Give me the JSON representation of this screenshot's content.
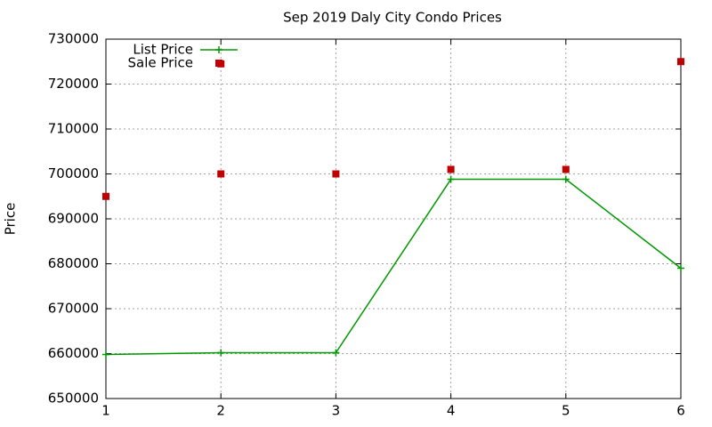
{
  "chart_data": {
    "type": "line",
    "title": "Sep 2019 Daly City Condo Prices",
    "y_label": "Price",
    "xlim": [
      1,
      6
    ],
    "xticks": [
      1,
      2,
      3,
      4,
      5,
      6
    ],
    "ylim": [
      650000,
      730000
    ],
    "yticks": [
      650000,
      660000,
      670000,
      680000,
      690000,
      700000,
      710000,
      720000,
      730000
    ],
    "grid": true,
    "legend": "top-left",
    "series": [
      {
        "name": "List Price",
        "color": "#009900",
        "style": "linespoints",
        "x": [
          1,
          2,
          3,
          4,
          5,
          6
        ],
        "values": [
          659800,
          660200,
          660200,
          698800,
          698800,
          679000
        ]
      },
      {
        "name": "Sale Price",
        "color": "#c00000",
        "style": "points",
        "x": [
          1,
          2,
          2,
          3,
          4,
          5,
          6
        ],
        "values": [
          695000,
          724500,
          700000,
          700000,
          701000,
          701000,
          725000
        ]
      }
    ]
  }
}
